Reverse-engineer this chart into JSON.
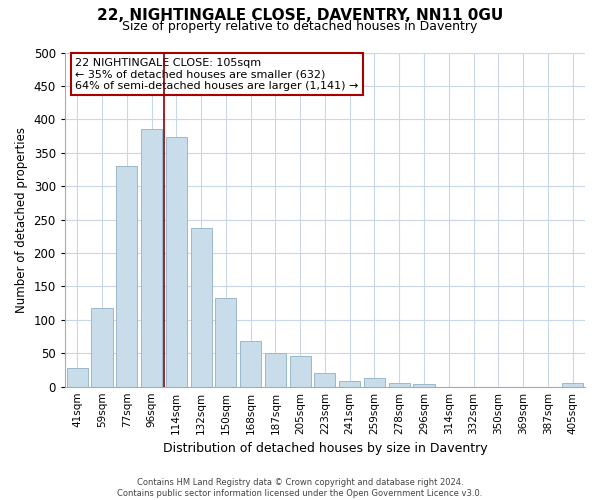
{
  "title": "22, NIGHTINGALE CLOSE, DAVENTRY, NN11 0GU",
  "subtitle": "Size of property relative to detached houses in Daventry",
  "xlabel": "Distribution of detached houses by size in Daventry",
  "ylabel": "Number of detached properties",
  "bar_color": "#c8dcea",
  "bar_edge_color": "#9ab8cc",
  "categories": [
    "41sqm",
    "59sqm",
    "77sqm",
    "96sqm",
    "114sqm",
    "132sqm",
    "150sqm",
    "168sqm",
    "187sqm",
    "205sqm",
    "223sqm",
    "241sqm",
    "259sqm",
    "278sqm",
    "296sqm",
    "314sqm",
    "332sqm",
    "350sqm",
    "369sqm",
    "387sqm",
    "405sqm"
  ],
  "values": [
    28,
    118,
    330,
    385,
    373,
    237,
    132,
    68,
    50,
    46,
    20,
    8,
    13,
    5,
    4,
    0,
    0,
    0,
    0,
    0,
    5
  ],
  "ylim": [
    0,
    500
  ],
  "yticks": [
    0,
    50,
    100,
    150,
    200,
    250,
    300,
    350,
    400,
    450,
    500
  ],
  "property_line_x": 3.5,
  "annotation_title": "22 NIGHTINGALE CLOSE: 105sqm",
  "annotation_line1": "← 35% of detached houses are smaller (632)",
  "annotation_line2": "64% of semi-detached houses are larger (1,141) →",
  "annotation_box_color": "#ffffff",
  "annotation_box_edge": "#aa0000",
  "property_line_color": "#8b0000",
  "footer_line1": "Contains HM Land Registry data © Crown copyright and database right 2024.",
  "footer_line2": "Contains public sector information licensed under the Open Government Licence v3.0.",
  "background_color": "#ffffff",
  "grid_color": "#c8d8e8",
  "title_fontsize": 11,
  "subtitle_fontsize": 9
}
